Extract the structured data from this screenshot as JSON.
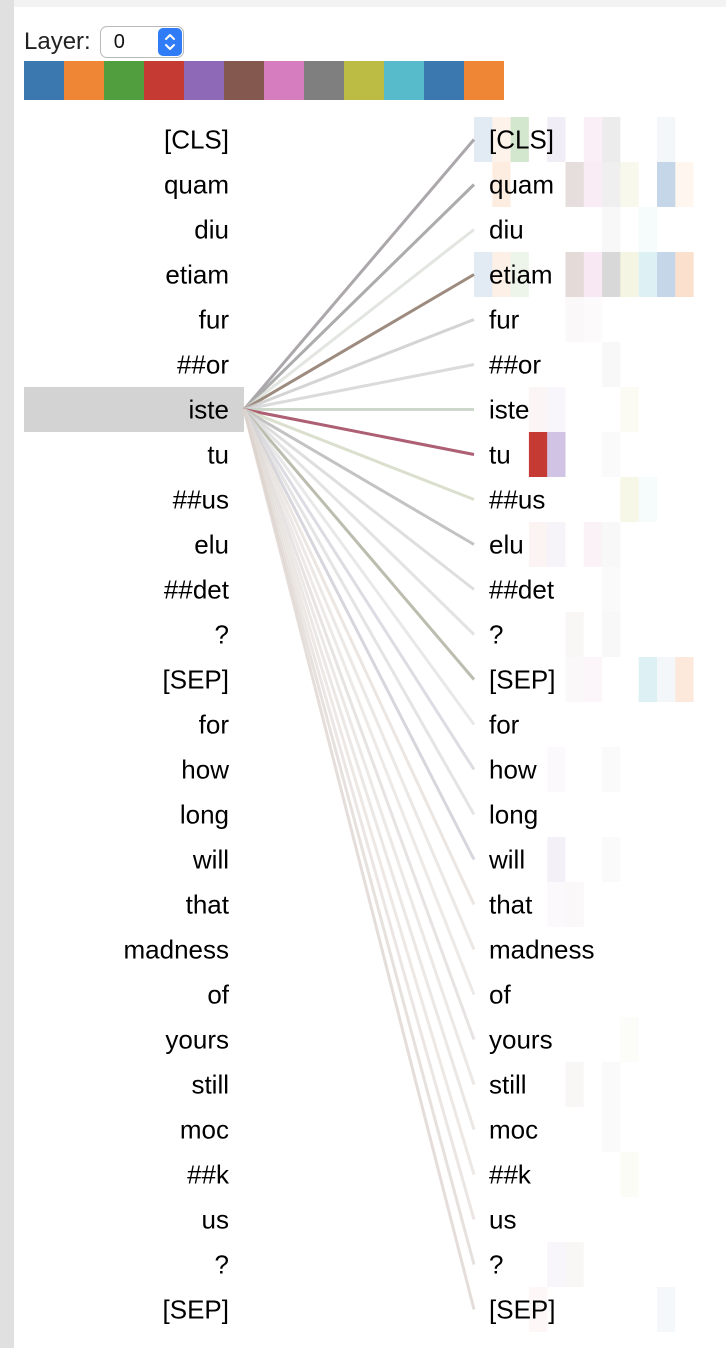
{
  "layer": {
    "label": "Layer:",
    "value": "0"
  },
  "head_colors": [
    "#3b78b0",
    "#ef8636",
    "#519e3e",
    "#c53a32",
    "#8d69b8",
    "#84584e",
    "#d57dbe",
    "#7f7f7f",
    "#bcbc45",
    "#57bbcc",
    "#3b78b0",
    "#ef8636"
  ],
  "tokens": [
    "[CLS]",
    "quam",
    "diu",
    "etiam",
    "fur",
    "##or",
    "iste",
    "tu",
    "##us",
    "elu",
    "##det",
    "?",
    "[SEP]",
    "for",
    "how",
    "long",
    "will",
    "that",
    "madness",
    "of",
    "yours",
    "still",
    "moc",
    "##k",
    "us",
    "?",
    "[SEP]"
  ],
  "selected_index": 6,
  "attention_lines": [
    {
      "target": 0,
      "color": "#a7a2a6",
      "opacity": 0.95
    },
    {
      "target": 1,
      "color": "#a8a8a8",
      "opacity": 0.95
    },
    {
      "target": 2,
      "color": "#dbdfd8",
      "opacity": 0.8
    },
    {
      "target": 3,
      "color": "#9c8b7e",
      "opacity": 1.0
    },
    {
      "target": 4,
      "color": "#cccccc",
      "opacity": 0.85
    },
    {
      "target": 5,
      "color": "#d5d5d5",
      "opacity": 0.85
    },
    {
      "target": 6,
      "color": "#c8d3c6",
      "opacity": 0.9
    },
    {
      "target": 7,
      "color": "#ad5f73",
      "opacity": 1.0
    },
    {
      "target": 8,
      "color": "#d5dac6",
      "opacity": 0.85
    },
    {
      "target": 9,
      "color": "#bcbcbc",
      "opacity": 0.9
    },
    {
      "target": 10,
      "color": "#d6d6d6",
      "opacity": 0.8
    },
    {
      "target": 11,
      "color": "#dadada",
      "opacity": 0.75
    },
    {
      "target": 12,
      "color": "#b8b9ab",
      "opacity": 0.95
    },
    {
      "target": 13,
      "color": "#dedede",
      "opacity": 0.7
    },
    {
      "target": 14,
      "color": "#d0d0d8",
      "opacity": 0.75
    },
    {
      "target": 15,
      "color": "#d9d9d9",
      "opacity": 0.7
    },
    {
      "target": 16,
      "color": "#cdccd4",
      "opacity": 0.8
    },
    {
      "target": 17,
      "color": "#e4dcd6",
      "opacity": 0.7
    },
    {
      "target": 18,
      "color": "#e1dbd8",
      "opacity": 0.65
    },
    {
      "target": 19,
      "color": "#e3ddd9",
      "opacity": 0.65
    },
    {
      "target": 20,
      "color": "#ddd7d6",
      "opacity": 0.7
    },
    {
      "target": 21,
      "color": "#e2dbd8",
      "opacity": 0.65
    },
    {
      "target": 22,
      "color": "#e1dad5",
      "opacity": 0.65
    },
    {
      "target": 23,
      "color": "#e3dbd5",
      "opacity": 0.65
    },
    {
      "target": 24,
      "color": "#e0d9d4",
      "opacity": 0.65
    },
    {
      "target": 25,
      "color": "#ddd4cf",
      "opacity": 0.7
    },
    {
      "target": 26,
      "color": "#dcd2cc",
      "opacity": 0.75
    }
  ],
  "attention_cells": [
    {
      "row": 0,
      "head": 0,
      "weight": 0.15
    },
    {
      "row": 0,
      "head": 1,
      "weight": 0.1
    },
    {
      "row": 0,
      "head": 2,
      "weight": 0.25
    },
    {
      "row": 0,
      "head": 4,
      "weight": 0.12
    },
    {
      "row": 0,
      "head": 6,
      "weight": 0.12
    },
    {
      "row": 0,
      "head": 7,
      "weight": 0.15
    },
    {
      "row": 0,
      "head": 10,
      "weight": 0.06
    },
    {
      "row": 1,
      "head": 1,
      "weight": 0.15
    },
    {
      "row": 1,
      "head": 5,
      "weight": 0.2
    },
    {
      "row": 1,
      "head": 6,
      "weight": 0.15
    },
    {
      "row": 1,
      "head": 7,
      "weight": 0.12
    },
    {
      "row": 1,
      "head": 8,
      "weight": 0.1
    },
    {
      "row": 1,
      "head": 10,
      "weight": 0.3
    },
    {
      "row": 1,
      "head": 11,
      "weight": 0.08
    },
    {
      "row": 2,
      "head": 7,
      "weight": 0.05
    },
    {
      "row": 2,
      "head": 9,
      "weight": 0.05
    },
    {
      "row": 3,
      "head": 0,
      "weight": 0.15
    },
    {
      "row": 3,
      "head": 1,
      "weight": 0.12
    },
    {
      "row": 3,
      "head": 2,
      "weight": 0.1
    },
    {
      "row": 3,
      "head": 5,
      "weight": 0.22
    },
    {
      "row": 3,
      "head": 6,
      "weight": 0.18
    },
    {
      "row": 3,
      "head": 7,
      "weight": 0.3
    },
    {
      "row": 3,
      "head": 8,
      "weight": 0.15
    },
    {
      "row": 3,
      "head": 9,
      "weight": 0.2
    },
    {
      "row": 3,
      "head": 10,
      "weight": 0.3
    },
    {
      "row": 3,
      "head": 11,
      "weight": 0.25
    },
    {
      "row": 4,
      "head": 5,
      "weight": 0.04
    },
    {
      "row": 4,
      "head": 6,
      "weight": 0.04
    },
    {
      "row": 5,
      "head": 7,
      "weight": 0.05
    },
    {
      "row": 6,
      "head": 3,
      "weight": 0.05
    },
    {
      "row": 6,
      "head": 4,
      "weight": 0.06
    },
    {
      "row": 6,
      "head": 8,
      "weight": 0.06
    },
    {
      "row": 7,
      "head": 3,
      "weight": 1.0
    },
    {
      "row": 7,
      "head": 4,
      "weight": 0.4
    },
    {
      "row": 7,
      "head": 7,
      "weight": 0.04
    },
    {
      "row": 8,
      "head": 8,
      "weight": 0.12
    },
    {
      "row": 8,
      "head": 9,
      "weight": 0.05
    },
    {
      "row": 9,
      "head": 3,
      "weight": 0.06
    },
    {
      "row": 9,
      "head": 4,
      "weight": 0.08
    },
    {
      "row": 9,
      "head": 6,
      "weight": 0.1
    },
    {
      "row": 9,
      "head": 7,
      "weight": 0.05
    },
    {
      "row": 10,
      "head": 7,
      "weight": 0.04
    },
    {
      "row": 11,
      "head": 5,
      "weight": 0.05
    },
    {
      "row": 11,
      "head": 7,
      "weight": 0.05
    },
    {
      "row": 12,
      "head": 5,
      "weight": 0.04
    },
    {
      "row": 12,
      "head": 6,
      "weight": 0.08
    },
    {
      "row": 12,
      "head": 9,
      "weight": 0.2
    },
    {
      "row": 12,
      "head": 10,
      "weight": 0.06
    },
    {
      "row": 12,
      "head": 11,
      "weight": 0.18
    },
    {
      "row": 14,
      "head": 4,
      "weight": 0.04
    },
    {
      "row": 14,
      "head": 7,
      "weight": 0.04
    },
    {
      "row": 16,
      "head": 4,
      "weight": 0.1
    },
    {
      "row": 16,
      "head": 7,
      "weight": 0.04
    },
    {
      "row": 17,
      "head": 4,
      "weight": 0.04
    },
    {
      "row": 17,
      "head": 5,
      "weight": 0.04
    },
    {
      "row": 20,
      "head": 8,
      "weight": 0.04
    },
    {
      "row": 21,
      "head": 5,
      "weight": 0.05
    },
    {
      "row": 21,
      "head": 7,
      "weight": 0.04
    },
    {
      "row": 22,
      "head": 7,
      "weight": 0.04
    },
    {
      "row": 23,
      "head": 8,
      "weight": 0.05
    },
    {
      "row": 25,
      "head": 4,
      "weight": 0.06
    },
    {
      "row": 25,
      "head": 5,
      "weight": 0.05
    },
    {
      "row": 26,
      "head": 3,
      "weight": 0.04
    },
    {
      "row": 26,
      "head": 10,
      "weight": 0.05
    }
  ]
}
